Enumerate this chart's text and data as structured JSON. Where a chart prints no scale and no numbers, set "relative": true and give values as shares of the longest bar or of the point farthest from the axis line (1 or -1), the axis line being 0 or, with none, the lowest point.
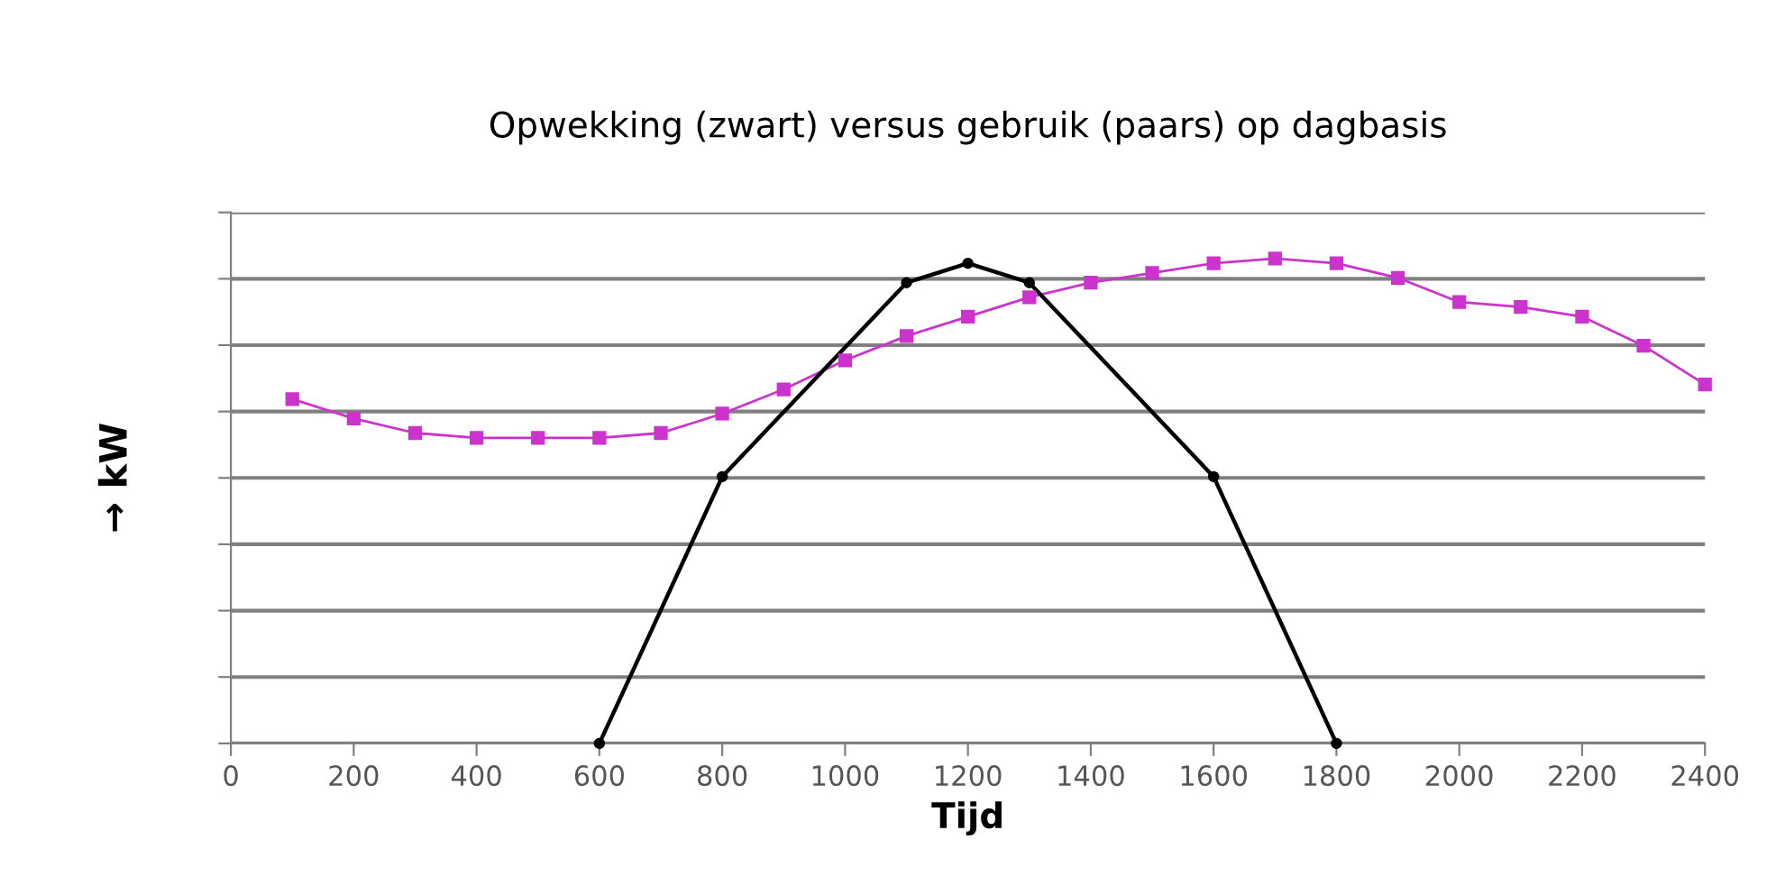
{
  "chart_data": {
    "type": "line",
    "title": "Opwekking (zwart) versus gebruik (paars) op dagbasis",
    "xlabel": "Tijd",
    "ylabel": "→ kW",
    "relative": true,
    "xlim": [
      0,
      2400
    ],
    "xticks": [
      0,
      200,
      400,
      600,
      800,
      1000,
      1200,
      1400,
      1600,
      1800,
      2000,
      2200,
      2400
    ],
    "grid": "y",
    "marker": "square",
    "series": [
      {
        "color": "#cc33cc",
        "x": [
          100,
          200,
          300,
          400,
          500,
          600,
          700,
          800,
          900,
          1000,
          1100,
          1200,
          1300,
          1400,
          1500,
          1600,
          1700,
          1800,
          1900,
          2000,
          2100,
          2200,
          2300,
          2400
        ],
        "values": [
          0.71,
          0.67,
          0.64,
          0.63,
          0.63,
          0.63,
          0.64,
          0.68,
          0.73,
          0.79,
          0.84,
          0.88,
          0.92,
          0.95,
          0.97,
          0.99,
          1.0,
          0.99,
          0.96,
          0.91,
          0.9,
          0.88,
          0.82,
          0.74
        ]
      },
      {
        "color": "#000000",
        "marker": "circle",
        "x": [
          600,
          800,
          1100,
          1200,
          1300,
          1600,
          1800
        ],
        "values": [
          0,
          0.55,
          0.95,
          0.99,
          0.95,
          0.55,
          0
        ]
      }
    ]
  }
}
